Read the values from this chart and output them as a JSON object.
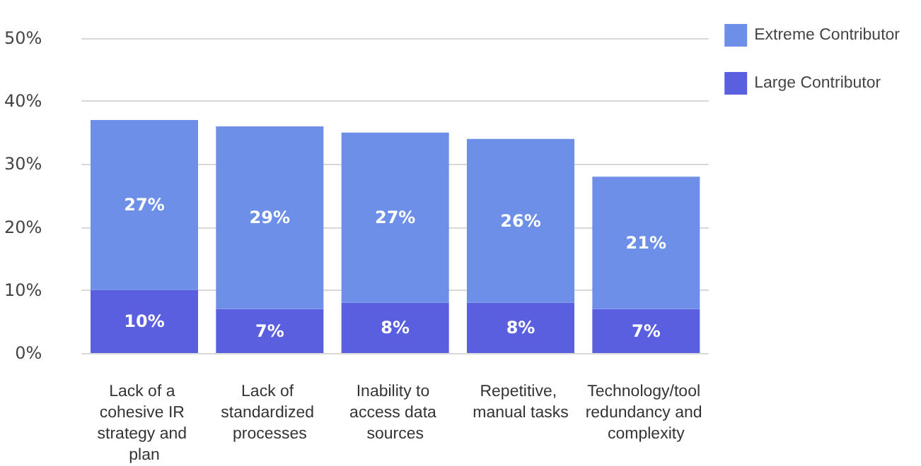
{
  "chart_data": {
    "type": "bar",
    "stacked": true,
    "categories": [
      "Lack of a cohesive IR strategy and plan",
      "Lack of standardized processes",
      "Inability to access data sources",
      "Repetitive, manual tasks",
      "Technology/tool redundancy and complexity"
    ],
    "series": [
      {
        "name": "Large Contributor",
        "color": "#5a5fe0",
        "values": [
          10,
          7,
          8,
          8,
          7
        ],
        "value_labels": [
          "10%",
          "7%",
          "8%",
          "8%",
          "7%"
        ]
      },
      {
        "name": "Extreme Contributor",
        "color": "#6d8fe8",
        "values": [
          27,
          29,
          27,
          26,
          21
        ],
        "value_labels": [
          "27%",
          "29%",
          "27%",
          "26%",
          "21%"
        ]
      }
    ],
    "ylim": [
      0,
      50
    ],
    "yticks": [
      {
        "value": 0,
        "label": "0%"
      },
      {
        "value": 10,
        "label": "10%"
      },
      {
        "value": 20,
        "label": "20%"
      },
      {
        "value": 30,
        "label": "30%"
      },
      {
        "value": 40,
        "label": "40%"
      },
      {
        "value": 50,
        "label": "50%"
      }
    ],
    "grid": "y",
    "legend": "top right"
  }
}
